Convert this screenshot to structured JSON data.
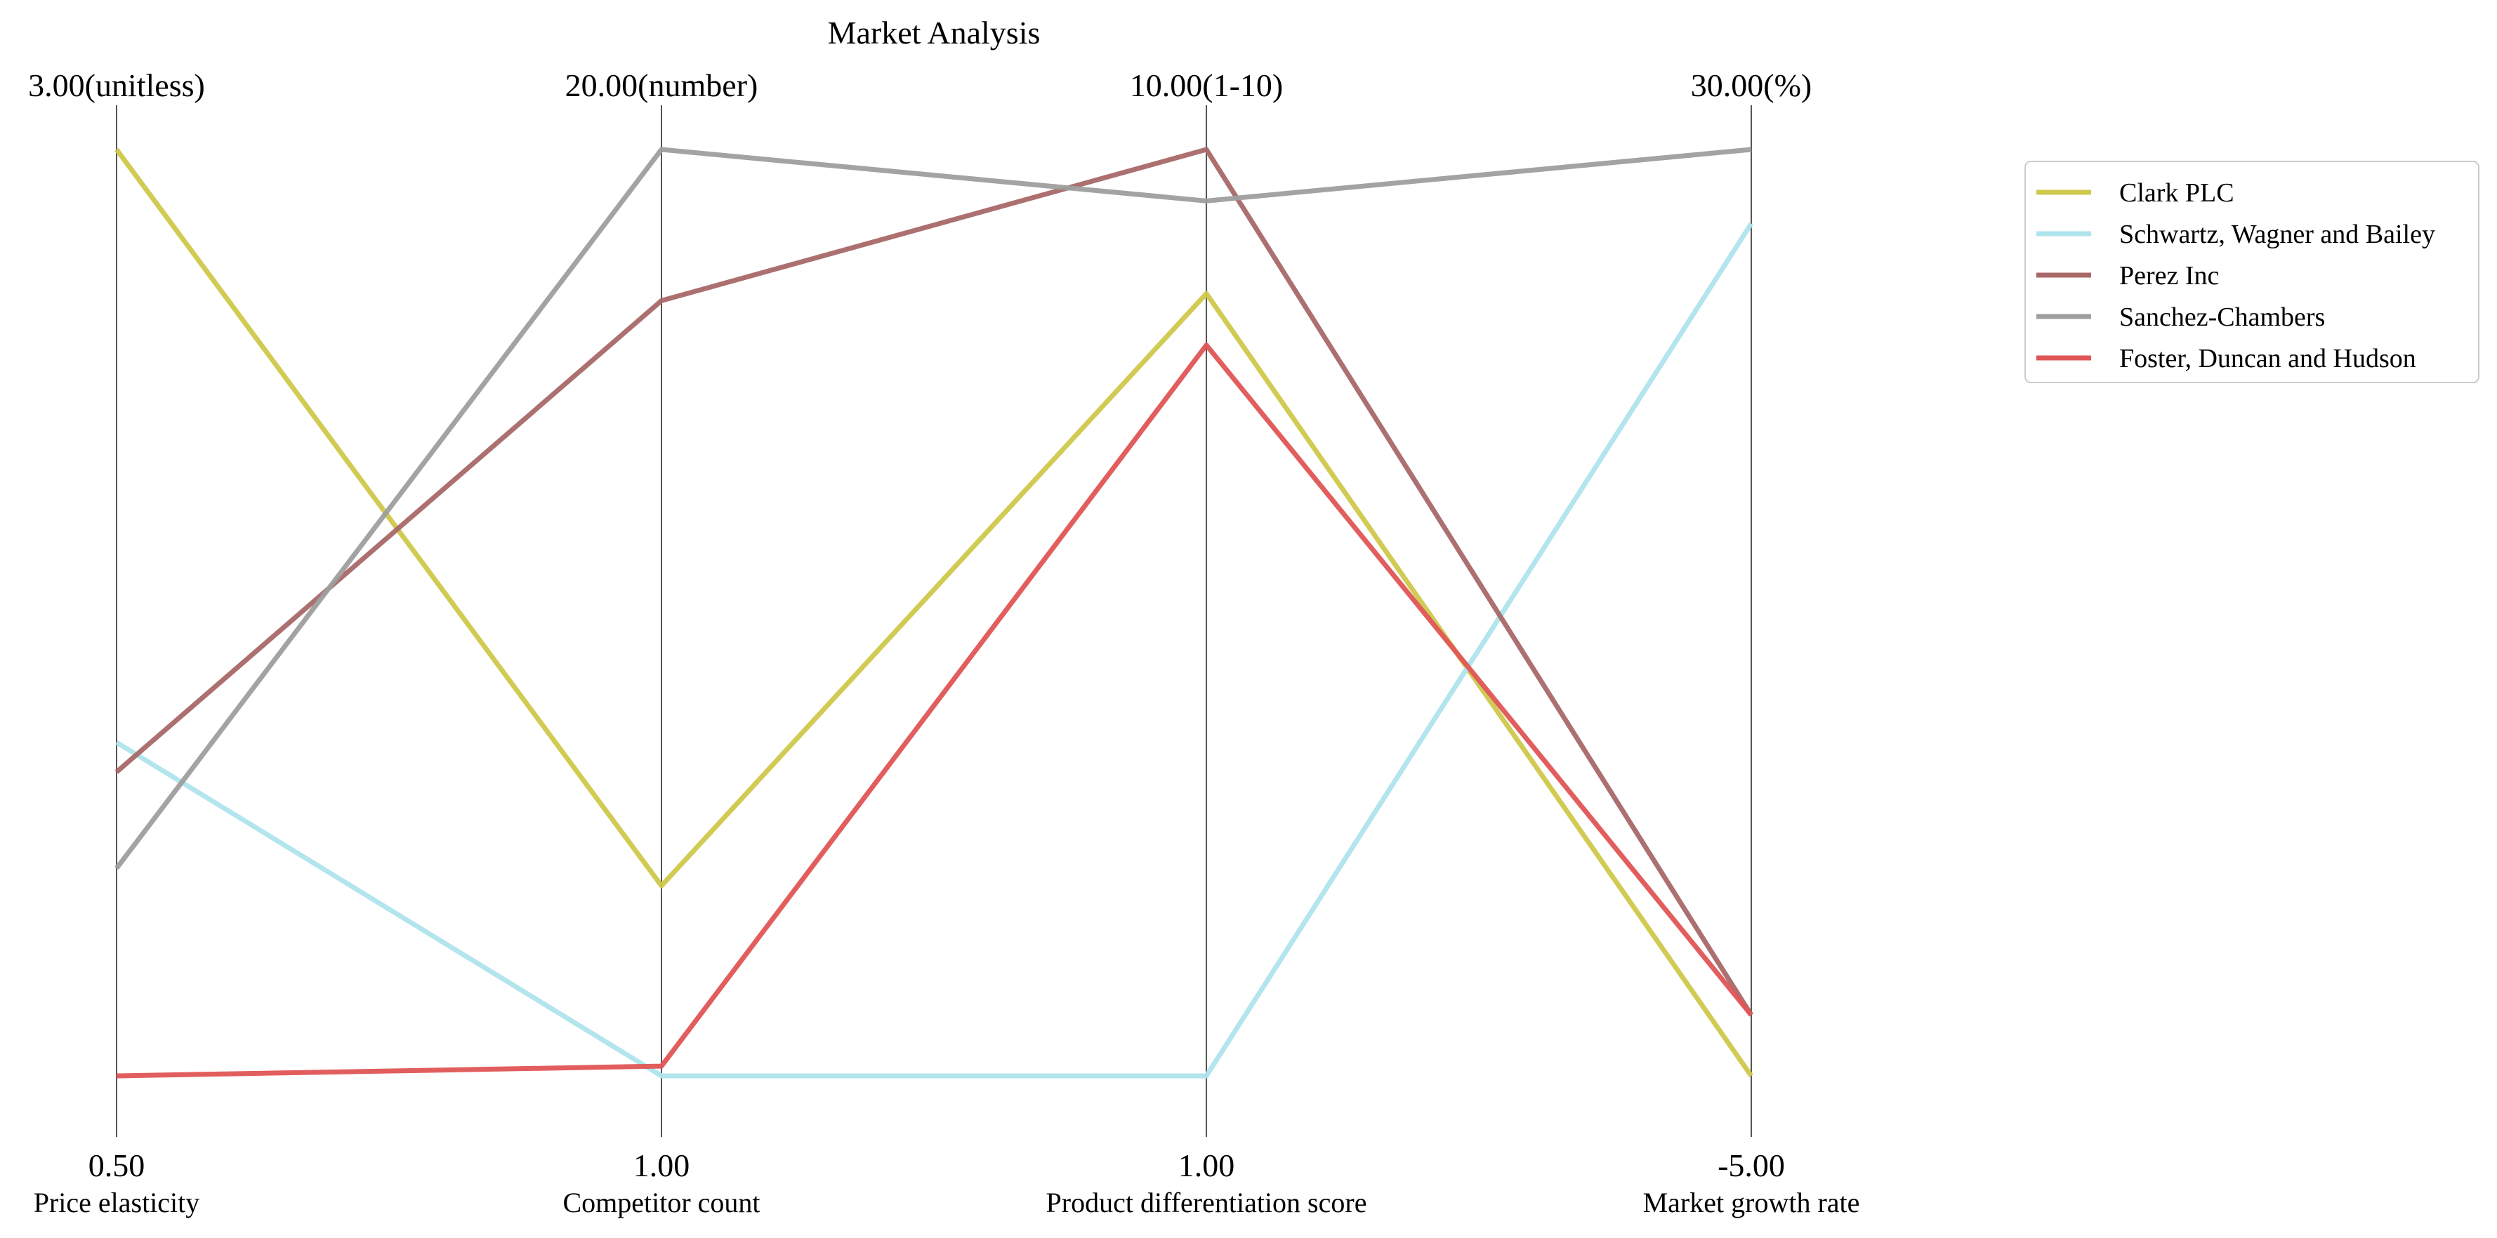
{
  "chart_data": {
    "type": "parallel_coordinates",
    "title": "Market Analysis",
    "axes": [
      {
        "name": "Price elasticity",
        "min": 0.5,
        "max": 3.0,
        "min_label": "0.50",
        "max_label": "3.00(unitless)"
      },
      {
        "name": "Competitor count",
        "min": 1.0,
        "max": 20.0,
        "min_label": "1.00",
        "max_label": "20.00(number)"
      },
      {
        "name": "Product differentiation score",
        "min": 1.0,
        "max": 10.0,
        "min_label": "1.00",
        "max_label": "10.00(1-10)"
      },
      {
        "name": "Market growth rate",
        "min": -5.0,
        "max": 30.0,
        "min_label": "-5.00",
        "max_label": "30.00(%)"
      }
    ],
    "series": [
      {
        "name": "Clark PLC",
        "color": "#cfc84a",
        "values": [
          3.0,
          4.9,
          8.6,
          -5.0
        ]
      },
      {
        "name": "Schwartz, Wagner and Bailey",
        "color": "#aee4ec",
        "values": [
          1.4,
          1.0,
          1.0,
          27.2
        ]
      },
      {
        "name": "Perez Inc",
        "color": "#a86868",
        "values": [
          1.32,
          16.9,
          10.0,
          -2.7
        ]
      },
      {
        "name": "Sanchez-Chambers",
        "color": "#9e9e9e",
        "values": [
          1.06,
          20.0,
          9.5,
          30.0
        ]
      },
      {
        "name": "Foster, Duncan and Hudson",
        "color": "#e05555",
        "values": [
          0.5,
          1.2,
          8.1,
          -2.7
        ]
      }
    ],
    "legend_position": "top-right",
    "grid": false
  }
}
